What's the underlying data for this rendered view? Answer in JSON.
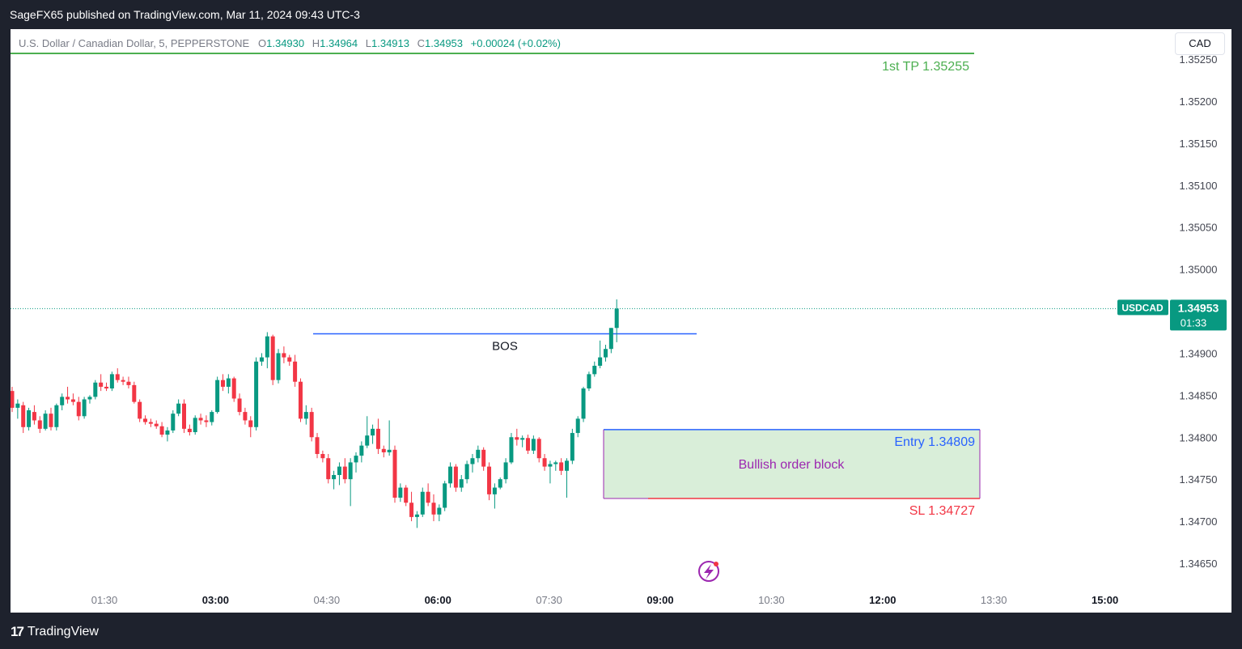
{
  "header": {
    "publish_line": "SageFX65 published on TradingView.com, Mar 11, 2024 09:43 UTC-3"
  },
  "legend": {
    "symbol_line": "U.S. Dollar / Canadian Dollar, 5, PEPPERSTONE",
    "o_key": "O",
    "o_val": "1.34930",
    "h_key": "H",
    "h_val": "1.34964",
    "l_key": "L",
    "l_val": "1.34913",
    "c_key": "C",
    "c_val": "1.34953",
    "change": "+0.00024 (+0.02%)"
  },
  "currency_button": "CAD",
  "footer": {
    "brand": "TradingView",
    "logo_glyph": "17"
  },
  "colors": {
    "up": "#089981",
    "down": "#f23645",
    "tp": "#4caf50",
    "entry": "#2962ff",
    "sl": "#f23645",
    "order_block_fill": "#d9eed9",
    "order_block_text": "#9c27b0"
  },
  "chart_data": {
    "type": "candlestick",
    "symbol": "USDCAD",
    "interval": "5",
    "y_ticks": [
      "1.35250",
      "1.35200",
      "1.35150",
      "1.35100",
      "1.35050",
      "1.35000",
      "1.34900",
      "1.34850",
      "1.34800",
      "1.34750",
      "1.34700",
      "1.34650"
    ],
    "x_ticks": [
      {
        "label": "01:30",
        "bold": false
      },
      {
        "label": "03:00",
        "bold": true
      },
      {
        "label": "04:30",
        "bold": false
      },
      {
        "label": "06:00",
        "bold": true
      },
      {
        "label": "07:30",
        "bold": false
      },
      {
        "label": "09:00",
        "bold": true
      },
      {
        "label": "10:30",
        "bold": false
      },
      {
        "label": "12:00",
        "bold": true
      },
      {
        "label": "13:30",
        "bold": false
      },
      {
        "label": "15:00",
        "bold": true
      }
    ],
    "last_price": {
      "symbol_label": "USDCAD",
      "price": "1.34953",
      "countdown": "01:33"
    },
    "annotations": {
      "tp": {
        "label": "1st TP 1.35255",
        "price": 1.35255
      },
      "bos": {
        "label": "BOS",
        "price": 1.34923
      },
      "entry": {
        "label": "Entry  1.34809",
        "price": 1.34809
      },
      "sl": {
        "label": "SL 1.34727",
        "price": 1.34727
      },
      "order_block": {
        "label": "Bullish order block"
      }
    },
    "candles": [
      [
        1.34855,
        1.3486,
        1.3483,
        1.34835
      ],
      [
        1.34835,
        1.34845,
        1.34822,
        1.3484
      ],
      [
        1.34838,
        1.34842,
        1.34805,
        1.34812
      ],
      [
        1.34812,
        1.34835,
        1.34808,
        1.34832
      ],
      [
        1.3483,
        1.34838,
        1.34815,
        1.3482
      ],
      [
        1.3482,
        1.34825,
        1.34805,
        1.3481
      ],
      [
        1.3481,
        1.34832,
        1.34808,
        1.34828
      ],
      [
        1.34828,
        1.34835,
        1.34808,
        1.34812
      ],
      [
        1.34812,
        1.3484,
        1.34808,
        1.34838
      ],
      [
        1.34838,
        1.34852,
        1.34832,
        1.34848
      ],
      [
        1.34848,
        1.3486,
        1.3484,
        1.34845
      ],
      [
        1.34845,
        1.34852,
        1.34838,
        1.34842
      ],
      [
        1.34842,
        1.34848,
        1.3482,
        1.34825
      ],
      [
        1.34825,
        1.34848,
        1.34822,
        1.34845
      ],
      [
        1.34845,
        1.3485,
        1.3484,
        1.34848
      ],
      [
        1.34848,
        1.34868,
        1.34845,
        1.34865
      ],
      [
        1.34865,
        1.34875,
        1.34855,
        1.3486
      ],
      [
        1.3486,
        1.34865,
        1.34855,
        1.34858
      ],
      [
        1.34858,
        1.34878,
        1.34855,
        1.34875
      ],
      [
        1.34875,
        1.34882,
        1.34865,
        1.34868
      ],
      [
        1.34868,
        1.34872,
        1.34862,
        1.34866
      ],
      [
        1.34866,
        1.34872,
        1.34858,
        1.34862
      ],
      [
        1.34862,
        1.34866,
        1.3484,
        1.34842
      ],
      [
        1.34842,
        1.34845,
        1.34818,
        1.34822
      ],
      [
        1.34822,
        1.34826,
        1.34815,
        1.34818
      ],
      [
        1.34818,
        1.34822,
        1.34812,
        1.34816
      ],
      [
        1.34816,
        1.3482,
        1.3481,
        1.34813
      ],
      [
        1.34813,
        1.34818,
        1.348,
        1.34803
      ],
      [
        1.34803,
        1.34812,
        1.34795,
        1.34808
      ],
      [
        1.34808,
        1.34832,
        1.34805,
        1.34828
      ],
      [
        1.34828,
        1.34845,
        1.34825,
        1.3484
      ],
      [
        1.3484,
        1.34845,
        1.34805,
        1.3481
      ],
      [
        1.3481,
        1.34815,
        1.34802,
        1.34806
      ],
      [
        1.34806,
        1.34826,
        1.34803,
        1.34823
      ],
      [
        1.34823,
        1.34828,
        1.34815,
        1.3482
      ],
      [
        1.3482,
        1.34826,
        1.34812,
        1.34818
      ],
      [
        1.34818,
        1.34832,
        1.34814,
        1.3483
      ],
      [
        1.3483,
        1.34872,
        1.34828,
        1.34868
      ],
      [
        1.34868,
        1.34875,
        1.34855,
        1.3486
      ],
      [
        1.3486,
        1.34875,
        1.34852,
        1.3487
      ],
      [
        1.3487,
        1.34872,
        1.34842,
        1.34846
      ],
      [
        1.34846,
        1.34852,
        1.34826,
        1.3483
      ],
      [
        1.3483,
        1.34835,
        1.34815,
        1.3482
      ],
      [
        1.3482,
        1.34825,
        1.348,
        1.34812
      ],
      [
        1.34812,
        1.34895,
        1.34808,
        1.3489
      ],
      [
        1.3489,
        1.349,
        1.34885,
        1.34895
      ],
      [
        1.34895,
        1.34925,
        1.34882,
        1.3492
      ],
      [
        1.3492,
        1.34922,
        1.34862,
        1.34868
      ],
      [
        1.34868,
        1.34905,
        1.34864,
        1.349
      ],
      [
        1.349,
        1.34908,
        1.34888,
        1.34895
      ],
      [
        1.34895,
        1.34898,
        1.34885,
        1.3489
      ],
      [
        1.3489,
        1.34898,
        1.3486,
        1.34866
      ],
      [
        1.34866,
        1.3487,
        1.34818,
        1.34822
      ],
      [
        1.34822,
        1.34838,
        1.34815,
        1.3483
      ],
      [
        1.3483,
        1.34835,
        1.34795,
        1.348
      ],
      [
        1.348,
        1.34805,
        1.34775,
        1.3478
      ],
      [
        1.3478,
        1.34784,
        1.3477,
        1.34775
      ],
      [
        1.34775,
        1.3478,
        1.34745,
        1.3475
      ],
      [
        1.3475,
        1.3476,
        1.34738,
        1.34755
      ],
      [
        1.34755,
        1.3477,
        1.34743,
        1.34765
      ],
      [
        1.34765,
        1.34775,
        1.34745,
        1.3475
      ],
      [
        1.3475,
        1.34775,
        1.34718,
        1.3477
      ],
      [
        1.3477,
        1.34782,
        1.34758,
        1.34778
      ],
      [
        1.34778,
        1.34795,
        1.3477,
        1.3479
      ],
      [
        1.3479,
        1.34825,
        1.34787,
        1.34802
      ],
      [
        1.34802,
        1.34815,
        1.34792,
        1.3481
      ],
      [
        1.3481,
        1.34822,
        1.3478,
        1.34786
      ],
      [
        1.34786,
        1.3479,
        1.34776,
        1.34782
      ],
      [
        1.34782,
        1.3482,
        1.34778,
        1.34785
      ],
      [
        1.34785,
        1.3479,
        1.34722,
        1.34728
      ],
      [
        1.34728,
        1.34745,
        1.34723,
        1.3474
      ],
      [
        1.3474,
        1.34743,
        1.34718,
        1.34722
      ],
      [
        1.34722,
        1.34735,
        1.347,
        1.34705
      ],
      [
        1.34705,
        1.34712,
        1.34692,
        1.34708
      ],
      [
        1.34708,
        1.3474,
        1.34705,
        1.34735
      ],
      [
        1.34735,
        1.34745,
        1.34718,
        1.34722
      ],
      [
        1.34722,
        1.34732,
        1.347,
        1.34708
      ],
      [
        1.34708,
        1.3472,
        1.347,
        1.34716
      ],
      [
        1.34716,
        1.34748,
        1.34712,
        1.34745
      ],
      [
        1.34745,
        1.3477,
        1.3474,
        1.34765
      ],
      [
        1.34765,
        1.34768,
        1.34735,
        1.3474
      ],
      [
        1.3474,
        1.34755,
        1.34735,
        1.3475
      ],
      [
        1.3475,
        1.34772,
        1.34745,
        1.34768
      ],
      [
        1.34768,
        1.3478,
        1.34758,
        1.34775
      ],
      [
        1.34775,
        1.3479,
        1.3477,
        1.34785
      ],
      [
        1.34785,
        1.34788,
        1.3476,
        1.34765
      ],
      [
        1.34765,
        1.3477,
        1.34725,
        1.34732
      ],
      [
        1.34732,
        1.34745,
        1.34715,
        1.3474
      ],
      [
        1.3474,
        1.34752,
        1.34738,
        1.3475
      ],
      [
        1.3475,
        1.34775,
        1.34745,
        1.3477
      ],
      [
        1.3477,
        1.34805,
        1.34768,
        1.348
      ],
      [
        1.348,
        1.3481,
        1.3479,
        1.34797
      ],
      [
        1.34797,
        1.34802,
        1.34788,
        1.34799
      ],
      [
        1.34799,
        1.34803,
        1.3478,
        1.34784
      ],
      [
        1.34784,
        1.34802,
        1.3478,
        1.34798
      ],
      [
        1.34798,
        1.348,
        1.3477,
        1.34775
      ],
      [
        1.34775,
        1.3478,
        1.3476,
        1.34765
      ],
      [
        1.34765,
        1.34772,
        1.34745,
        1.34768
      ],
      [
        1.34768,
        1.34772,
        1.3476,
        1.3477
      ],
      [
        1.3477,
        1.34775,
        1.34755,
        1.3476
      ],
      [
        1.3476,
        1.34775,
        1.34728,
        1.34772
      ],
      [
        1.34772,
        1.3481,
        1.34768,
        1.34805
      ],
      [
        1.34805,
        1.34825,
        1.348,
        1.34822
      ],
      [
        1.34822,
        1.3486,
        1.34818,
        1.34858
      ],
      [
        1.34858,
        1.34878,
        1.34855,
        1.34875
      ],
      [
        1.34875,
        1.3489,
        1.34872,
        1.34885
      ],
      [
        1.34885,
        1.34915,
        1.34882,
        1.34895
      ],
      [
        1.34895,
        1.3491,
        1.3489,
        1.34905
      ],
      [
        1.34905,
        1.3493,
        1.349,
        1.3493
      ],
      [
        1.3493,
        1.34964,
        1.34913,
        1.34953
      ]
    ]
  }
}
